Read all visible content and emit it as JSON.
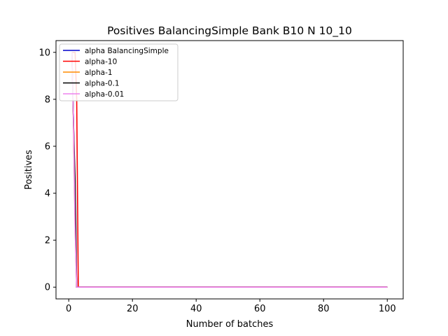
{
  "chart_data": {
    "type": "line",
    "title": "Positives BalancingSimple Bank B10 N 10_10",
    "xlabel": "Number of batches",
    "ylabel": "Positives",
    "xlim": [
      -4,
      105
    ],
    "ylim": [
      -0.5,
      10.5
    ],
    "xticks": [
      0,
      20,
      40,
      60,
      80,
      100
    ],
    "yticks": [
      0,
      2,
      4,
      6,
      8,
      10
    ],
    "grid": false,
    "legend_position": "top-left",
    "series": [
      {
        "name": "alpha BalancingSimple",
        "color": "#0000cc",
        "x": [
          1,
          1.5,
          2,
          2.5,
          100
        ],
        "y": [
          10,
          7,
          3,
          0,
          0
        ]
      },
      {
        "name": "alpha-10",
        "color": "#ff0000",
        "x": [
          1,
          2,
          2.5,
          3,
          100
        ],
        "y": [
          10,
          10,
          8,
          0,
          0
        ]
      },
      {
        "name": "alpha-1",
        "color": "#ff8c00",
        "x": [
          1,
          1.5,
          2,
          2.5,
          100
        ],
        "y": [
          10,
          6.8,
          2.5,
          0,
          0
        ]
      },
      {
        "name": "alpha-0.1",
        "color": "#000000",
        "x": [
          1,
          1.5,
          2,
          2.5,
          100
        ],
        "y": [
          10,
          7,
          4.5,
          0,
          0
        ]
      },
      {
        "name": "alpha-0.01",
        "color": "#ee82ee",
        "x": [
          1,
          1.5,
          2,
          2.5,
          100
        ],
        "y": [
          10,
          7,
          2.5,
          0,
          0
        ]
      }
    ]
  }
}
